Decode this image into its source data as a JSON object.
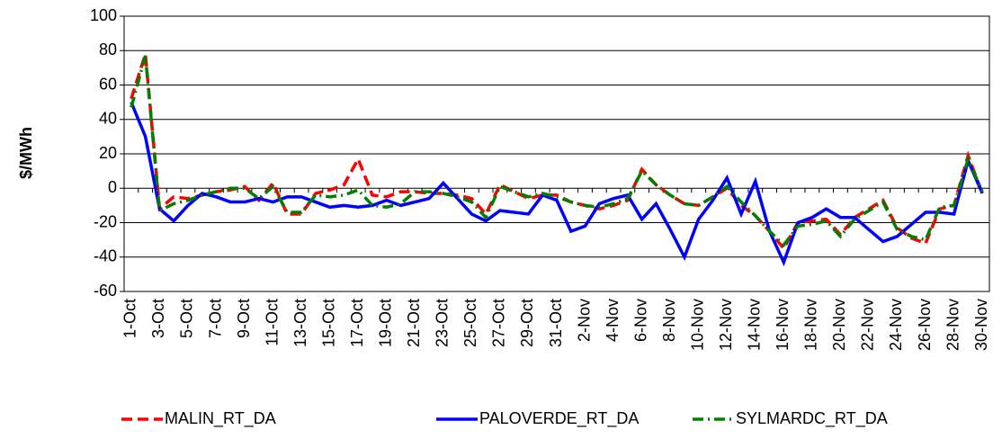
{
  "chart_data": {
    "type": "line",
    "ylabel": "$/MWh",
    "categories": [
      "1-Oct",
      null,
      "3-Oct",
      null,
      "5-Oct",
      null,
      "7-Oct",
      null,
      "9-Oct",
      null,
      "11-Oct",
      null,
      "13-Oct",
      null,
      "15-Oct",
      null,
      "17-Oct",
      null,
      "19-Oct",
      null,
      "21-Oct",
      null,
      "23-Oct",
      null,
      "25-Oct",
      null,
      "27-Oct",
      null,
      "29-Oct",
      null,
      "31-Oct",
      null,
      "2-Nov",
      null,
      "4-Nov",
      null,
      "6-Nov",
      null,
      "8-Nov",
      null,
      "10-Nov",
      null,
      "12-Nov",
      null,
      "14-Nov",
      null,
      "16-Nov",
      null,
      "18-Nov",
      null,
      "20-Nov",
      null,
      "22-Nov",
      null,
      "24-Nov",
      null,
      "26-Nov",
      null,
      "28-Nov",
      null,
      "30-Nov"
    ],
    "series": [
      {
        "name": "MALIN_RT_DA",
        "color": "#ff0000",
        "dash": "dashed",
        "values": [
          52,
          78,
          -12,
          -5,
          -6,
          -4,
          -2,
          -1,
          1,
          -7,
          3,
          -15,
          -15,
          -3,
          -1,
          2,
          17,
          -4,
          -5,
          -2,
          -2,
          -3,
          -3,
          -4,
          -6,
          -15,
          2,
          -2,
          -6,
          -4,
          -4,
          -8,
          -10,
          -12,
          -10,
          -7,
          11,
          2,
          -4,
          -9,
          -10,
          -5,
          0,
          -10,
          -16,
          -25,
          -35,
          -20,
          -19,
          -18,
          -27,
          -17,
          -12,
          -7,
          -23,
          -29,
          -32,
          -12,
          -10,
          19,
          -3
        ]
      },
      {
        "name": "PALOVERDE_RT_DA",
        "color": "#0000ff",
        "dash": "solid",
        "values": [
          50,
          30,
          -12,
          -19,
          -10,
          -3,
          -5,
          -8,
          -8,
          -6,
          -8,
          -5,
          -5,
          -8,
          -11,
          -10,
          -11,
          -10,
          -7,
          -10,
          -8,
          -6,
          3,
          -6,
          -15,
          -19,
          -13,
          -14,
          -15,
          -4,
          -7,
          -25,
          -22,
          -9,
          -6,
          -4,
          -18,
          -9,
          -24,
          -40,
          -18,
          -7,
          6,
          -15,
          4,
          -25,
          -43,
          -20,
          -17,
          -12,
          -17,
          -17,
          -24,
          -31,
          -28,
          -21,
          -14,
          -14,
          -15,
          16,
          -3
        ]
      },
      {
        "name": "SYLMARDC_RT_DA",
        "color": "#007f00",
        "dash": "dashdot",
        "values": [
          47,
          77,
          -13,
          -9,
          -7,
          -4,
          -2,
          0,
          0,
          -6,
          1,
          -14,
          -14,
          -4,
          -5,
          -4,
          -1,
          -10,
          -11,
          -9,
          -2,
          -2,
          -3,
          -5,
          -8,
          -17,
          1,
          -2,
          -5,
          -3,
          -5,
          -8,
          -10,
          -11,
          -9,
          -6,
          10,
          2,
          -4,
          -9,
          -10,
          -5,
          1,
          -8,
          -16,
          -25,
          -33,
          -22,
          -21,
          -19,
          -28,
          -18,
          -13,
          -8,
          -24,
          -28,
          -30,
          -11,
          -10,
          17,
          -2
        ]
      }
    ],
    "ylim": [
      -60,
      100
    ],
    "yticks": [
      -60,
      -40,
      -20,
      0,
      20,
      40,
      60,
      80,
      100
    ],
    "grid": true
  }
}
